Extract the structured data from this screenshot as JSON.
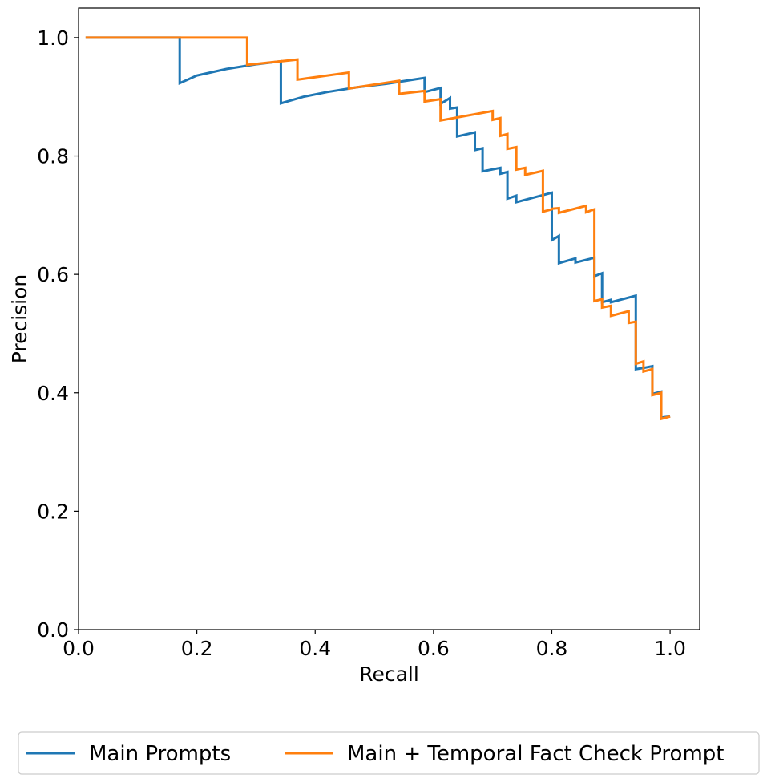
{
  "chart_data": {
    "type": "line",
    "title": "",
    "xlabel": "Recall",
    "ylabel": "Precision",
    "xlim": [
      0.0,
      1.05
    ],
    "ylim": [
      0.0,
      1.05
    ],
    "xticks": [
      0.0,
      0.2,
      0.4,
      0.6,
      0.8,
      1.0
    ],
    "xtick_labels": [
      "0.0",
      "0.2",
      "0.4",
      "0.6",
      "0.8",
      "1.0"
    ],
    "yticks": [
      0.0,
      0.2,
      0.4,
      0.6,
      0.8,
      1.0
    ],
    "ytick_labels": [
      "0.0",
      "0.2",
      "0.4",
      "0.6",
      "0.8",
      "1.0"
    ],
    "grid": false,
    "legend_position": "bottom-center",
    "series": [
      {
        "name": "Main Prompts",
        "color": "#1f77b4",
        "points": [
          [
            0.012,
            1.0
          ],
          [
            0.171,
            1.0
          ],
          [
            0.171,
            0.923
          ],
          [
            0.2,
            0.936
          ],
          [
            0.25,
            0.947
          ],
          [
            0.3,
            0.955
          ],
          [
            0.342,
            0.96
          ],
          [
            0.342,
            0.889
          ],
          [
            0.38,
            0.9
          ],
          [
            0.42,
            0.908
          ],
          [
            0.47,
            0.916
          ],
          [
            0.52,
            0.922
          ],
          [
            0.585,
            0.932
          ],
          [
            0.585,
            0.908
          ],
          [
            0.612,
            0.915
          ],
          [
            0.612,
            0.888
          ],
          [
            0.628,
            0.898
          ],
          [
            0.628,
            0.88
          ],
          [
            0.64,
            0.882
          ],
          [
            0.64,
            0.833
          ],
          [
            0.67,
            0.84
          ],
          [
            0.67,
            0.81
          ],
          [
            0.683,
            0.813
          ],
          [
            0.683,
            0.774
          ],
          [
            0.713,
            0.78
          ],
          [
            0.713,
            0.77
          ],
          [
            0.725,
            0.773
          ],
          [
            0.725,
            0.728
          ],
          [
            0.74,
            0.733
          ],
          [
            0.74,
            0.722
          ],
          [
            0.8,
            0.738
          ],
          [
            0.8,
            0.658
          ],
          [
            0.812,
            0.665
          ],
          [
            0.812,
            0.619
          ],
          [
            0.84,
            0.627
          ],
          [
            0.84,
            0.62
          ],
          [
            0.872,
            0.628
          ],
          [
            0.872,
            0.597
          ],
          [
            0.885,
            0.602
          ],
          [
            0.885,
            0.553
          ],
          [
            0.9,
            0.557
          ],
          [
            0.9,
            0.553
          ],
          [
            0.942,
            0.564
          ],
          [
            0.942,
            0.44
          ],
          [
            0.955,
            0.442
          ],
          [
            0.955,
            0.442
          ],
          [
            0.97,
            0.445
          ],
          [
            0.97,
            0.398
          ],
          [
            0.985,
            0.402
          ],
          [
            0.985,
            0.358
          ],
          [
            1.0,
            0.36
          ]
        ]
      },
      {
        "name": "Main + Temporal Fact Check Prompt",
        "color": "#ff7f0e",
        "points": [
          [
            0.012,
            1.0
          ],
          [
            0.285,
            1.0
          ],
          [
            0.285,
            0.954
          ],
          [
            0.37,
            0.963
          ],
          [
            0.37,
            0.929
          ],
          [
            0.457,
            0.941
          ],
          [
            0.457,
            0.914
          ],
          [
            0.542,
            0.927
          ],
          [
            0.542,
            0.905
          ],
          [
            0.585,
            0.91
          ],
          [
            0.585,
            0.892
          ],
          [
            0.612,
            0.896
          ],
          [
            0.612,
            0.86
          ],
          [
            0.7,
            0.876
          ],
          [
            0.7,
            0.861
          ],
          [
            0.713,
            0.864
          ],
          [
            0.713,
            0.834
          ],
          [
            0.725,
            0.837
          ],
          [
            0.725,
            0.812
          ],
          [
            0.74,
            0.815
          ],
          [
            0.74,
            0.777
          ],
          [
            0.755,
            0.78
          ],
          [
            0.755,
            0.768
          ],
          [
            0.785,
            0.775
          ],
          [
            0.785,
            0.706
          ],
          [
            0.8,
            0.71
          ],
          [
            0.8,
            0.711
          ],
          [
            0.812,
            0.712
          ],
          [
            0.812,
            0.704
          ],
          [
            0.858,
            0.716
          ],
          [
            0.858,
            0.705
          ],
          [
            0.872,
            0.71
          ],
          [
            0.872,
            0.555
          ],
          [
            0.885,
            0.558
          ],
          [
            0.885,
            0.544
          ],
          [
            0.9,
            0.547
          ],
          [
            0.9,
            0.53
          ],
          [
            0.93,
            0.538
          ],
          [
            0.93,
            0.518
          ],
          [
            0.942,
            0.52
          ],
          [
            0.942,
            0.449
          ],
          [
            0.955,
            0.453
          ],
          [
            0.955,
            0.436
          ],
          [
            0.97,
            0.44
          ],
          [
            0.97,
            0.396
          ],
          [
            0.985,
            0.4
          ],
          [
            0.985,
            0.356
          ],
          [
            1.0,
            0.36
          ]
        ]
      }
    ]
  }
}
